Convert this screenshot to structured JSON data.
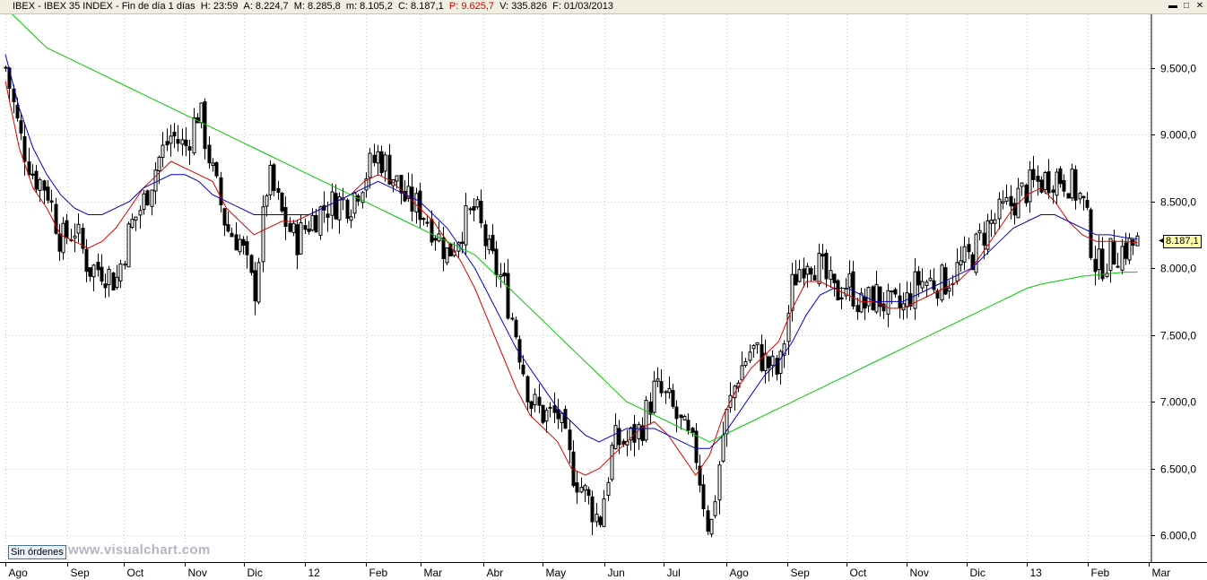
{
  "header": {
    "symbol": "IBEX",
    "sep1": " - ",
    "name": "IBEX 35 INDEX",
    "sep2": " - ",
    "timeframe": "Fin de día 1 días",
    "h": "H: 23:59",
    "a": "A: 8.224,7",
    "m": "M: 8.285,8",
    "mn": "m: 8.105,2",
    "c": "C: 8.187,1",
    "p": "P: 9.625,7",
    "v": "V: 335.826",
    "f": "F: 01/03/2013"
  },
  "window_buttons": {
    "min": "▬",
    "max": "□",
    "close": "✕"
  },
  "footer": {
    "orders_button": "Sin órdenes",
    "watermark": "www.visualchart.com"
  },
  "last_price_label": "8.187,1",
  "colors": {
    "candle": "#000000",
    "ma_fast": "#e00000",
    "ma_mid": "#0000cc",
    "ma_slow": "#00cc00",
    "grid": "#c8c8c8",
    "label_bg": "#ffffb0"
  },
  "chart_data": {
    "type": "line",
    "note_series_type": "candlestick price with moving averages",
    "ylim": [
      5800,
      9900
    ],
    "y_ticks": [
      {
        "value": 6000,
        "label": "6.000,0"
      },
      {
        "value": 6500,
        "label": "6.500,0"
      },
      {
        "value": 7000,
        "label": "7.000,0"
      },
      {
        "value": 7500,
        "label": "7.500,0"
      },
      {
        "value": 8000,
        "label": "8.000,0"
      },
      {
        "value": 8500,
        "label": "8.500,0"
      },
      {
        "value": 9000,
        "label": "9.000,0"
      },
      {
        "value": 9500,
        "label": "9.500,0"
      }
    ],
    "x_ticks": [
      {
        "week": 0,
        "label": "Ago"
      },
      {
        "week": 4.5,
        "label": "Sep"
      },
      {
        "week": 8.6,
        "label": "Oct"
      },
      {
        "week": 13,
        "label": "Nov"
      },
      {
        "week": 17.3,
        "label": "Dic"
      },
      {
        "week": 21.7,
        "label": "12"
      },
      {
        "week": 26.1,
        "label": "Feb"
      },
      {
        "week": 30.1,
        "label": "Mar"
      },
      {
        "week": 34.6,
        "label": "Abr"
      },
      {
        "week": 38.9,
        "label": "May"
      },
      {
        "week": 43.4,
        "label": "Jun"
      },
      {
        "week": 47.7,
        "label": "Jul"
      },
      {
        "week": 52.2,
        "label": "Ago"
      },
      {
        "week": 56.6,
        "label": "Sep"
      },
      {
        "week": 60.9,
        "label": "Oct"
      },
      {
        "week": 65.3,
        "label": "Nov"
      },
      {
        "week": 69.6,
        "label": "Dic"
      },
      {
        "week": 74,
        "label": "13"
      },
      {
        "week": 78.4,
        "label": "Feb"
      },
      {
        "week": 82.8,
        "label": "Mar"
      }
    ],
    "xlim": [
      0,
      83
    ],
    "price_close_weekly": [
      9500,
      9000,
      8700,
      8600,
      8200,
      8300,
      8000,
      8000,
      7900,
      8300,
      8500,
      8800,
      9000,
      8900,
      9200,
      8700,
      8300,
      8200,
      7800,
      8700,
      8400,
      8200,
      8350,
      8450,
      8500,
      8500,
      8700,
      8850,
      8700,
      8500,
      8450,
      8300,
      8100,
      8300,
      8450,
      8100,
      7900,
      7500,
      7000,
      6900,
      6900,
      6500,
      6300,
      6100,
      6700,
      6700,
      6800,
      7100,
      7000,
      6800,
      6600,
      6000,
      6800,
      7200,
      7400,
      7300,
      7200,
      7900,
      8100,
      8000,
      7800,
      7900,
      7700,
      7800,
      7700,
      7700,
      7900,
      7900,
      7900,
      8000,
      8100,
      8300,
      8400,
      8500,
      8600,
      8650,
      8700,
      8650,
      8500,
      8000,
      8100,
      8150,
      8187
    ],
    "series": [
      {
        "name": "",
        "values": [
          9400,
          8900,
          8600,
          8450,
          8250,
          8200,
          8150,
          8200,
          8300,
          8450,
          8600,
          8700,
          8800,
          8750,
          8700,
          8650,
          8450,
          8350,
          8250,
          8300,
          8350,
          8350,
          8400,
          8450,
          8500,
          8550,
          8650,
          8700,
          8650,
          8550,
          8450,
          8350,
          8200,
          8050,
          7850,
          7600,
          7350,
          7100,
          6900,
          6800,
          6700,
          6500,
          6450,
          6500,
          6600,
          6700,
          6800,
          6850,
          6750,
          6600,
          6450,
          6600,
          6900,
          7100,
          7250,
          7350,
          7450,
          7700,
          7900,
          7900,
          7850,
          7800,
          7750,
          7750,
          7700,
          7700,
          7750,
          7800,
          7850,
          7900,
          8000,
          8150,
          8300,
          8450,
          8550,
          8600,
          8500,
          8350,
          8250,
          8200,
          8200,
          8200,
          8190
        ]
      },
      {
        "name": "",
        "values": [
          9600,
          9200,
          8900,
          8700,
          8550,
          8450,
          8400,
          8400,
          8450,
          8500,
          8600,
          8650,
          8700,
          8700,
          8650,
          8550,
          8500,
          8450,
          8400,
          8400,
          8400,
          8400,
          8400,
          8450,
          8500,
          8550,
          8600,
          8650,
          8600,
          8550,
          8500,
          8400,
          8300,
          8150,
          8000,
          7800,
          7600,
          7400,
          7250,
          7100,
          6950,
          6850,
          6750,
          6700,
          6750,
          6800,
          6800,
          6800,
          6750,
          6700,
          6650,
          6650,
          6750,
          6900,
          7050,
          7200,
          7300,
          7450,
          7650,
          7800,
          7850,
          7850,
          7800,
          7750,
          7750,
          7750,
          7800,
          7850,
          7900,
          7950,
          8000,
          8100,
          8200,
          8300,
          8350,
          8400,
          8400,
          8350,
          8300,
          8250,
          8250,
          8230,
          8220
        ]
      },
      {
        "name": "",
        "values": [
          9950,
          9850,
          9750,
          9650,
          9600,
          9550,
          9500,
          9450,
          9400,
          9350,
          9300,
          9250,
          9200,
          9150,
          9100,
          9050,
          9000,
          8950,
          8900,
          8850,
          8800,
          8750,
          8700,
          8650,
          8600,
          8550,
          8500,
          8450,
          8400,
          8350,
          8300,
          8250,
          8200,
          8150,
          8100,
          8000,
          7900,
          7800,
          7700,
          7600,
          7500,
          7400,
          7300,
          7200,
          7100,
          7000,
          6950,
          6900,
          6850,
          6800,
          6750,
          6700,
          6750,
          6800,
          6850,
          6900,
          6950,
          7000,
          7050,
          7100,
          7150,
          7200,
          7250,
          7300,
          7350,
          7400,
          7450,
          7500,
          7550,
          7600,
          7650,
          7700,
          7750,
          7800,
          7850,
          7880,
          7900,
          7920,
          7940,
          7950,
          7960,
          7970,
          7970
        ]
      }
    ]
  }
}
